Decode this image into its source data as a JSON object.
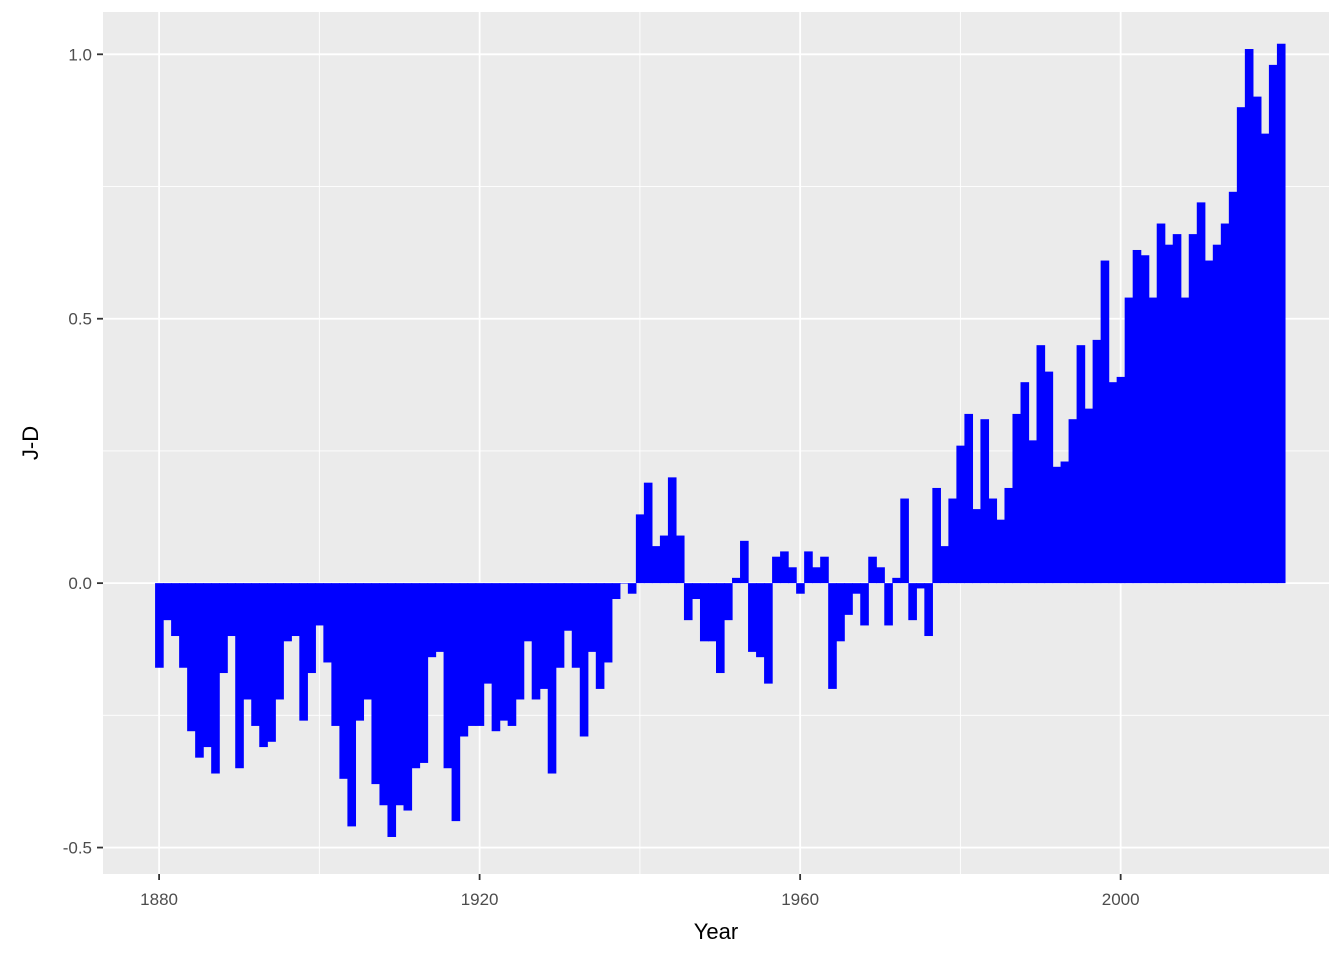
{
  "chart_data": {
    "type": "bar",
    "xlabel": "Year",
    "ylabel": "J-D",
    "x_start": 1880,
    "values": [
      -0.16,
      -0.07,
      -0.1,
      -0.16,
      -0.28,
      -0.33,
      -0.31,
      -0.36,
      -0.17,
      -0.1,
      -0.35,
      -0.22,
      -0.27,
      -0.31,
      -0.3,
      -0.22,
      -0.11,
      -0.1,
      -0.26,
      -0.17,
      -0.08,
      -0.15,
      -0.27,
      -0.37,
      -0.46,
      -0.26,
      -0.22,
      -0.38,
      -0.42,
      -0.48,
      -0.42,
      -0.43,
      -0.35,
      -0.34,
      -0.14,
      -0.13,
      -0.35,
      -0.45,
      -0.29,
      -0.27,
      -0.27,
      -0.19,
      -0.28,
      -0.26,
      -0.27,
      -0.22,
      -0.11,
      -0.22,
      -0.2,
      -0.36,
      -0.16,
      -0.09,
      -0.16,
      -0.29,
      -0.13,
      -0.2,
      -0.15,
      -0.03,
      0.0,
      -0.02,
      0.13,
      0.19,
      0.07,
      0.09,
      0.2,
      0.09,
      -0.07,
      -0.03,
      -0.11,
      -0.11,
      -0.17,
      -0.07,
      0.01,
      0.08,
      -0.13,
      -0.14,
      -0.19,
      0.05,
      0.06,
      0.03,
      -0.02,
      0.06,
      0.03,
      0.05,
      -0.2,
      -0.11,
      -0.06,
      -0.02,
      -0.08,
      0.05,
      0.03,
      -0.08,
      0.01,
      0.16,
      -0.07,
      -0.01,
      -0.1,
      0.18,
      0.07,
      0.16,
      0.26,
      0.32,
      0.14,
      0.31,
      0.16,
      0.12,
      0.18,
      0.32,
      0.38,
      0.27,
      0.45,
      0.4,
      0.22,
      0.23,
      0.31,
      0.45,
      0.33,
      0.46,
      0.61,
      0.38,
      0.39,
      0.54,
      0.63,
      0.62,
      0.54,
      0.68,
      0.64,
      0.66,
      0.54,
      0.66,
      0.72,
      0.61,
      0.64,
      0.68,
      0.74,
      0.9,
      1.01,
      0.92,
      0.85,
      0.98,
      1.02
    ],
    "xlim": [
      1873,
      2026
    ],
    "ylim": [
      -0.55,
      1.08
    ],
    "x_ticks": [
      1880,
      1920,
      1960,
      2000
    ],
    "x_tick_labels": [
      "1880",
      "1920",
      "1960",
      "2000"
    ],
    "y_ticks": [
      -0.5,
      0.0,
      0.5,
      1.0
    ],
    "y_tick_labels": [
      "-0.5",
      "0.0",
      "0.5",
      "1.0"
    ],
    "bar_color": "#0000ff",
    "panel_background": "#ebebeb",
    "grid_color": "#ffffff",
    "grid": true,
    "legend": "none"
  }
}
